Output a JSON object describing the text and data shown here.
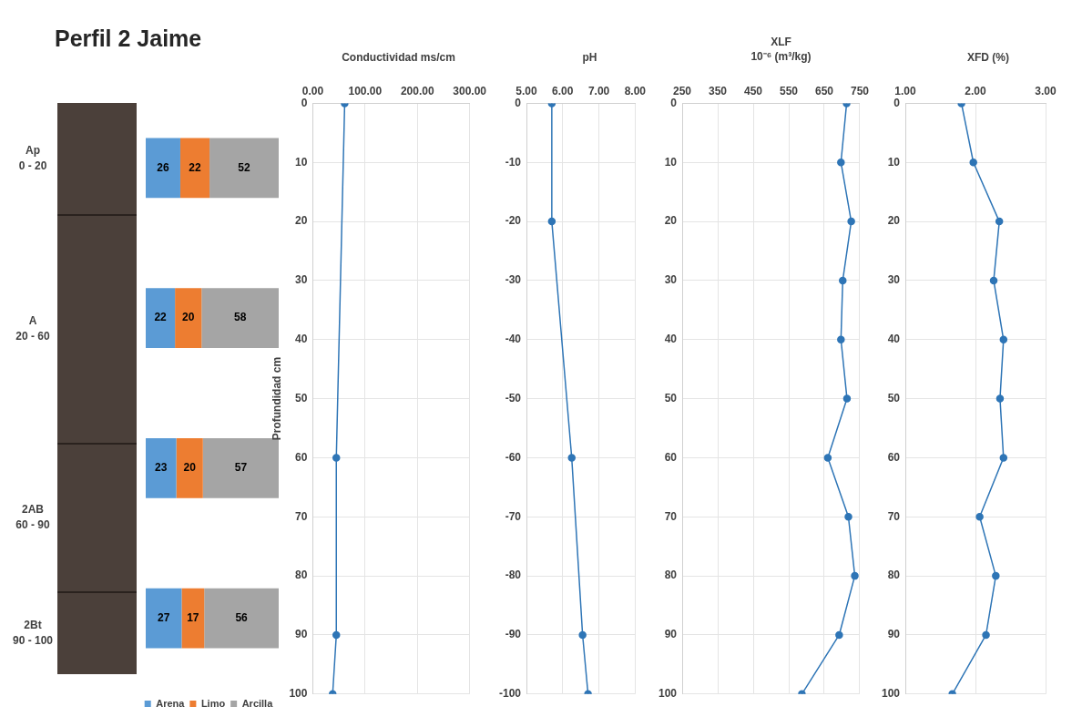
{
  "chart_data": [
    {
      "type": "other",
      "title": "Perfil 2 Jaime",
      "annotations": [
        "Ap\n0 - 20",
        "A\n20 - 60",
        "2AB\n60 - 90",
        "2Bt\n90 - 100"
      ]
    },
    {
      "type": "bar",
      "orientation": "horizontal",
      "stacked": true,
      "categories": [
        null,
        null,
        null,
        null
      ],
      "series": [
        {
          "name": "Arena",
          "color": "#5b9bd5",
          "values": [
            26,
            22,
            23,
            27
          ]
        },
        {
          "name": "Limo",
          "color": "#ed7d31",
          "values": [
            22,
            20,
            20,
            17
          ]
        },
        {
          "name": "Arcilla",
          "color": "#a5a5a5",
          "values": [
            52,
            58,
            57,
            56
          ]
        }
      ],
      "xlim": [
        0,
        100
      ],
      "tick_labels": false,
      "data_labels": true,
      "legend": "bottom"
    },
    {
      "type": "line",
      "title": "Conductividad ms/cm",
      "ylabel": "Profundidad cm",
      "marker": "circle",
      "grid": true,
      "series": [
        {
          "color": "#2e75b6",
          "x": [
            61,
            45,
            45,
            38
          ],
          "values": [
            0,
            60,
            90,
            100
          ]
        }
      ],
      "xlim": [
        0,
        300
      ],
      "xticks": [
        {
          "value": 0,
          "label": "0.00"
        },
        {
          "value": 100,
          "label": "100.00"
        },
        {
          "value": 200,
          "label": "200.00"
        },
        {
          "value": 300,
          "label": "300.00"
        }
      ],
      "ylim": [
        100,
        0
      ],
      "yticks": [
        0,
        10,
        20,
        30,
        40,
        50,
        60,
        70,
        80,
        90,
        100
      ]
    },
    {
      "type": "line",
      "title": "pH",
      "marker": "circle",
      "grid": true,
      "series": [
        {
          "color": "#2e75b6",
          "x": [
            5.7,
            5.7,
            6.25,
            6.55,
            6.7
          ],
          "values": [
            0,
            -20,
            -60,
            -90,
            -100
          ]
        }
      ],
      "xlim": [
        5,
        8
      ],
      "xticks": [
        {
          "value": 5,
          "label": "5.00"
        },
        {
          "value": 6,
          "label": "6.00"
        },
        {
          "value": 7,
          "label": "7.00"
        },
        {
          "value": 8,
          "label": "8.00"
        }
      ],
      "ylim": [
        -100,
        0
      ],
      "yticks": [
        0,
        -10,
        -20,
        -30,
        -40,
        -50,
        -60,
        -70,
        -80,
        -90,
        -100
      ]
    },
    {
      "type": "line",
      "title": "XLF\n10⁻⁶ (m³/kg)",
      "marker": "circle",
      "grid": true,
      "series": [
        {
          "color": "#2e75b6",
          "x": [
            713,
            697,
            726,
            702,
            697,
            714,
            660,
            718,
            736,
            692,
            587
          ],
          "values": [
            0,
            10,
            20,
            30,
            40,
            50,
            60,
            70,
            80,
            90,
            100
          ]
        }
      ],
      "xlim": [
        250,
        750
      ],
      "xticks": [
        250,
        350,
        450,
        550,
        650,
        750
      ],
      "ylim": [
        100,
        0
      ],
      "yticks": [
        0,
        10,
        20,
        30,
        40,
        50,
        60,
        70,
        80,
        90,
        100
      ]
    },
    {
      "type": "line",
      "title": "XFD (%)",
      "marker": "circle",
      "grid": true,
      "series": [
        {
          "color": "#2e75b6",
          "x": [
            1.8,
            1.97,
            2.34,
            2.26,
            2.4,
            2.35,
            2.4,
            2.06,
            2.29,
            2.15,
            1.67
          ],
          "values": [
            0,
            10,
            20,
            30,
            40,
            50,
            60,
            70,
            80,
            90,
            100
          ]
        }
      ],
      "xlim": [
        1,
        3
      ],
      "xticks": [
        {
          "value": 1,
          "label": "1.00"
        },
        {
          "value": 2,
          "label": "2.00"
        },
        {
          "value": 3,
          "label": "3.00"
        }
      ],
      "ylim": [
        100,
        0
      ],
      "yticks": [
        0,
        10,
        20,
        30,
        40,
        50,
        60,
        70,
        80,
        90,
        100
      ]
    }
  ]
}
